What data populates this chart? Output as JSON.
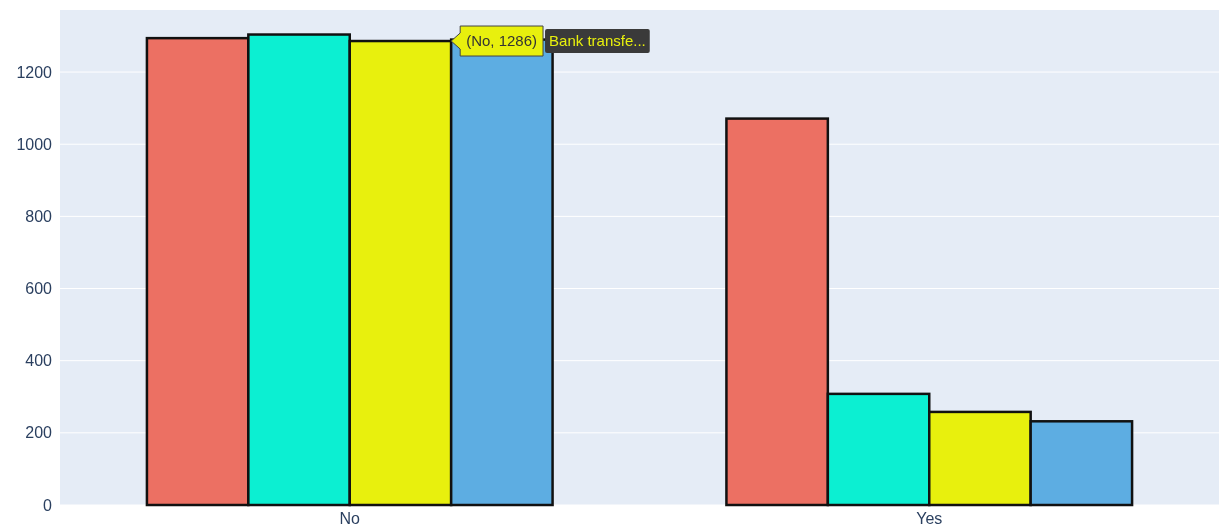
{
  "chart_data": {
    "type": "bar",
    "categories": [
      "No",
      "Yes"
    ],
    "series": [
      {
        "color": "#ec7063",
        "values": [
          1294,
          1071
        ]
      },
      {
        "color": "#0cefd2",
        "values": [
          1304,
          308
        ]
      },
      {
        "name": "Bank transfe...",
        "color": "#e8f00d",
        "values": [
          1286,
          258
        ]
      },
      {
        "color": "#5dade2",
        "values": [
          1290,
          232
        ]
      }
    ],
    "ylim": [
      0,
      1372
    ],
    "yticks": [
      0,
      200,
      400,
      600,
      800,
      1000,
      1200
    ],
    "grid": "y",
    "legend": false,
    "annotations": [
      "(No, 1286)"
    ]
  }
}
